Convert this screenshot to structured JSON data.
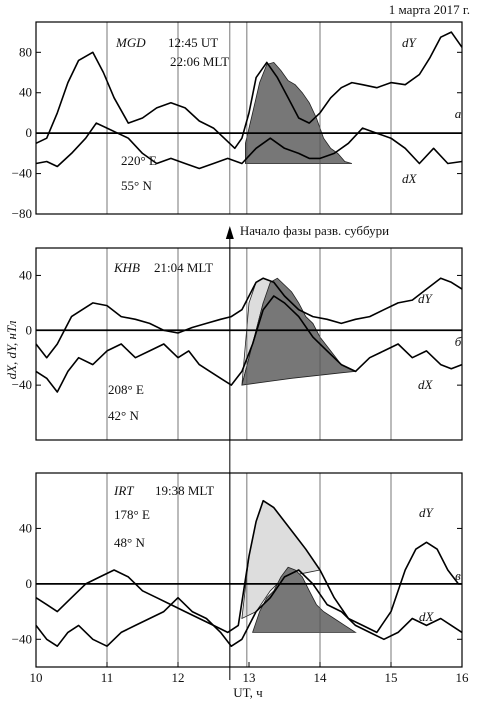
{
  "header": {
    "date": "1 марта 2017 г."
  },
  "chart_data": {
    "type": "line",
    "xlabel": "UT, ч",
    "ylabel": "dX, dY, нТл",
    "xlim": [
      10,
      16
    ],
    "x_ticks": [
      10,
      11,
      12,
      13,
      14,
      15,
      16
    ],
    "vlines_ut": [
      11,
      12,
      12.73,
      12.97,
      14,
      15
    ],
    "onset": {
      "label": "Начало фазы разв. суббури",
      "ut": 12.73
    },
    "panels": [
      {
        "id": "a",
        "panel_label": "а",
        "station": "MGD",
        "ut_time": "12:45 UT",
        "mlt": "22:06 MLT",
        "longitude": "220° E",
        "latitude": "55° N",
        "ylim": [
          -80,
          110
        ],
        "y_ticks": [
          -80,
          -40,
          0,
          40,
          80
        ],
        "series": [
          {
            "name": "dY",
            "label": "dY",
            "x": [
              10.0,
              10.15,
              10.3,
              10.45,
              10.6,
              10.8,
              10.95,
              11.1,
              11.3,
              11.5,
              11.7,
              11.9,
              12.1,
              12.3,
              12.5,
              12.65,
              12.8,
              12.9,
              13.0,
              13.1,
              13.25,
              13.4,
              13.55,
              13.7,
              13.85,
              14.0,
              14.15,
              14.3,
              14.45,
              14.6,
              14.8,
              15.0,
              15.2,
              15.4,
              15.55,
              15.7,
              15.85,
              16.0
            ],
            "y": [
              -10,
              -5,
              20,
              50,
              72,
              80,
              60,
              35,
              10,
              15,
              25,
              30,
              25,
              12,
              5,
              -5,
              -15,
              -5,
              20,
              55,
              70,
              55,
              35,
              15,
              10,
              20,
              35,
              45,
              50,
              48,
              45,
              50,
              48,
              58,
              75,
              95,
              100,
              85
            ]
          },
          {
            "name": "dX",
            "label": "dX",
            "x": [
              10.0,
              10.15,
              10.3,
              10.5,
              10.7,
              10.85,
              11.0,
              11.15,
              11.3,
              11.5,
              11.7,
              11.9,
              12.1,
              12.3,
              12.5,
              12.7,
              12.9,
              13.1,
              13.3,
              13.5,
              13.7,
              13.85,
              14.0,
              14.2,
              14.4,
              14.6,
              14.8,
              15.0,
              15.2,
              15.4,
              15.6,
              15.8,
              16.0
            ],
            "y": [
              -30,
              -28,
              -33,
              -20,
              -5,
              10,
              5,
              0,
              -5,
              -20,
              -30,
              -25,
              -30,
              -35,
              -30,
              -25,
              -30,
              -15,
              -5,
              -15,
              -20,
              -25,
              -25,
              -20,
              -10,
              5,
              0,
              -5,
              -15,
              -30,
              -15,
              -30,
              -28
            ]
          }
        ],
        "shaded": [
          {
            "name": "dY bay",
            "color": "#777777",
            "x": [
              12.95,
              13.05,
              13.15,
              13.25,
              13.35,
              13.45,
              13.55,
              13.65,
              13.75,
              13.85,
              13.95,
              14.05,
              14.15,
              14.25,
              14.35,
              14.45,
              14.3,
              13.6,
              12.95
            ],
            "y": [
              -10,
              20,
              50,
              68,
              70,
              62,
              52,
              48,
              40,
              30,
              15,
              -5,
              -15,
              -20,
              -28,
              -30,
              -30,
              -30,
              -30
            ]
          }
        ]
      },
      {
        "id": "b",
        "panel_label": "б",
        "station": "KHB",
        "mlt": "21:04 MLT",
        "longitude": "208° E",
        "latitude": "42° N",
        "ylim": [
          -80,
          60
        ],
        "y_ticks": [
          -40,
          0,
          40
        ],
        "series": [
          {
            "name": "dY",
            "label": "dY",
            "x": [
              10.0,
              10.15,
              10.3,
              10.5,
              10.65,
              10.8,
              11.0,
              11.2,
              11.4,
              11.6,
              11.8,
              12.0,
              12.2,
              12.4,
              12.6,
              12.75,
              12.9,
              13.0,
              13.1,
              13.2,
              13.35,
              13.5,
              13.7,
              13.9,
              14.1,
              14.3,
              14.5,
              14.7,
              14.9,
              15.1,
              15.3,
              15.5,
              15.7,
              15.85,
              16.0
            ],
            "y": [
              -10,
              -20,
              -10,
              10,
              15,
              20,
              18,
              10,
              8,
              5,
              0,
              -2,
              2,
              5,
              8,
              10,
              15,
              25,
              35,
              38,
              35,
              25,
              15,
              10,
              8,
              5,
              8,
              10,
              15,
              20,
              22,
              30,
              38,
              35,
              30
            ]
          },
          {
            "name": "dX",
            "label": "dX",
            "x": [
              10.0,
              10.15,
              10.3,
              10.45,
              10.6,
              10.8,
              11.0,
              11.2,
              11.4,
              11.6,
              11.8,
              12.0,
              12.15,
              12.3,
              12.45,
              12.6,
              12.75,
              12.9,
              13.05,
              13.2,
              13.35,
              13.5,
              13.7,
              13.9,
              14.1,
              14.3,
              14.5,
              14.7,
              14.9,
              15.1,
              15.3,
              15.5,
              15.7,
              15.85,
              16.0
            ],
            "y": [
              -30,
              -35,
              -45,
              -30,
              -20,
              -25,
              -15,
              -10,
              -20,
              -15,
              -10,
              -20,
              -15,
              -25,
              -30,
              -35,
              -40,
              -30,
              -10,
              15,
              25,
              20,
              10,
              -5,
              -15,
              -25,
              -30,
              -20,
              -15,
              -10,
              -20,
              -15,
              -25,
              -28,
              -25
            ]
          }
        ],
        "shaded": [
          {
            "name": "dY bay",
            "color": "#dddddd",
            "x": [
              12.9,
              13.0,
              13.1,
              13.2,
              13.35,
              13.5,
              13.6,
              13.5,
              13.2,
              12.9
            ],
            "y": [
              -40,
              20,
              35,
              38,
              35,
              25,
              20,
              20,
              20,
              -40
            ]
          },
          {
            "name": "dX bay",
            "color": "#777777",
            "x": [
              12.9,
              13.0,
              13.1,
              13.2,
              13.3,
              13.4,
              13.5,
              13.6,
              13.7,
              13.8,
              13.9,
              14.0,
              14.15,
              14.3,
              14.5,
              14.3,
              13.6,
              12.9
            ],
            "y": [
              -40,
              -20,
              0,
              20,
              35,
              38,
              33,
              28,
              20,
              10,
              5,
              -5,
              -15,
              -25,
              -30,
              -31,
              -35,
              -40
            ]
          }
        ]
      },
      {
        "id": "c",
        "panel_label": "в",
        "station": "IRT",
        "mlt": "19:38 MLT",
        "longitude": "178° E",
        "latitude": "48° N",
        "ylim": [
          -60,
          80
        ],
        "y_ticks": [
          -40,
          0,
          40
        ],
        "series": [
          {
            "name": "dY",
            "label": "dY",
            "x": [
              10.0,
              10.15,
              10.3,
              10.5,
              10.7,
              10.9,
              11.1,
              11.3,
              11.5,
              11.7,
              11.9,
              12.1,
              12.3,
              12.5,
              12.7,
              12.85,
              13.0,
              13.1,
              13.2,
              13.35,
              13.5,
              13.65,
              13.8,
              14.0,
              14.2,
              14.4,
              14.6,
              14.8,
              15.0,
              15.2,
              15.35,
              15.5,
              15.65,
              15.8,
              15.95,
              16.0
            ],
            "y": [
              -10,
              -15,
              -20,
              -10,
              0,
              5,
              10,
              5,
              -5,
              -10,
              -15,
              -20,
              -25,
              -30,
              -35,
              -30,
              20,
              45,
              60,
              55,
              45,
              35,
              25,
              10,
              -10,
              -25,
              -30,
              -35,
              -20,
              10,
              25,
              30,
              25,
              10,
              0,
              0
            ]
          },
          {
            "name": "dX",
            "label": "dX",
            "x": [
              10.0,
              10.15,
              10.3,
              10.45,
              10.6,
              10.8,
              11.0,
              11.2,
              11.4,
              11.6,
              11.8,
              12.0,
              12.2,
              12.4,
              12.6,
              12.75,
              12.9,
              13.1,
              13.3,
              13.5,
              13.7,
              13.9,
              14.1,
              14.3,
              14.5,
              14.7,
              14.9,
              15.1,
              15.3,
              15.5,
              15.7,
              15.85,
              16.0
            ],
            "y": [
              -30,
              -40,
              -45,
              -35,
              -30,
              -40,
              -45,
              -35,
              -30,
              -25,
              -20,
              -10,
              -20,
              -25,
              -35,
              -45,
              -40,
              -20,
              -10,
              5,
              10,
              0,
              -15,
              -20,
              -30,
              -35,
              -40,
              -35,
              -25,
              -30,
              -25,
              -30,
              -35
            ]
          }
        ],
        "shaded": [
          {
            "name": "dY bay",
            "color": "#dddddd",
            "x": [
              12.9,
              13.0,
              13.1,
              13.2,
              13.35,
              13.5,
              13.65,
              13.8,
              14.0,
              13.8,
              13.5,
              13.3,
              13.1,
              12.9
            ],
            "y": [
              -25,
              20,
              45,
              60,
              55,
              45,
              35,
              25,
              10,
              8,
              5,
              -5,
              -20,
              -25
            ]
          },
          {
            "name": "dX bay",
            "color": "#777777",
            "x": [
              13.05,
              13.15,
              13.25,
              13.35,
              13.45,
              13.55,
              13.65,
              13.75,
              13.85,
              13.95,
              14.05,
              14.2,
              14.35,
              14.5,
              14.35,
              13.7,
              13.05
            ],
            "y": [
              -35,
              -20,
              -10,
              -5,
              5,
              12,
              10,
              5,
              -5,
              -15,
              -20,
              -25,
              -30,
              -35,
              -35,
              -35,
              -35
            ]
          }
        ]
      }
    ]
  }
}
